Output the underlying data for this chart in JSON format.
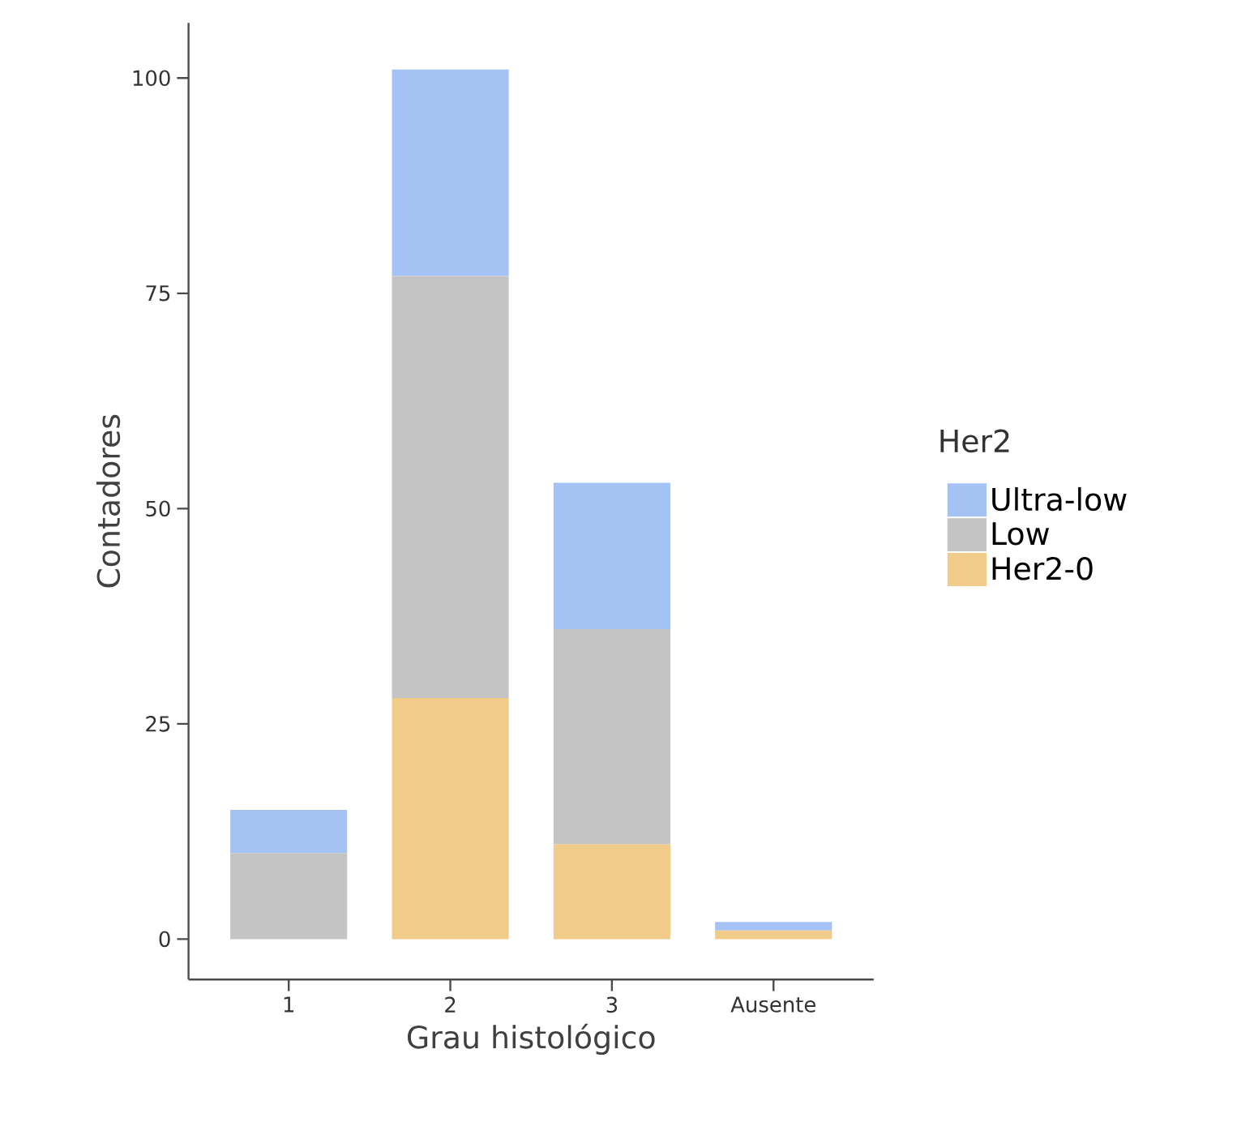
{
  "chart_data": {
    "type": "bar",
    "stacked": true,
    "xlabel": "Grau histológico",
    "ylabel": "Contadores",
    "legend_title": "Her2",
    "legend": "right",
    "grid": false,
    "categories": [
      "1",
      "2",
      "3",
      "Ausente"
    ],
    "series": [
      {
        "name": "Her2-0",
        "color": "#f0cb8a",
        "values": [
          0,
          28,
          11,
          1
        ]
      },
      {
        "name": "Low",
        "color": "#c4c4c4",
        "values": [
          10,
          49,
          25,
          0
        ]
      },
      {
        "name": "Ultra-low",
        "color": "#a4c2f4",
        "values": [
          5,
          24,
          17,
          1
        ]
      }
    ],
    "ylim": [
      -4.7,
      106.4
    ],
    "yticks": [
      0,
      25,
      50,
      75,
      100
    ]
  }
}
